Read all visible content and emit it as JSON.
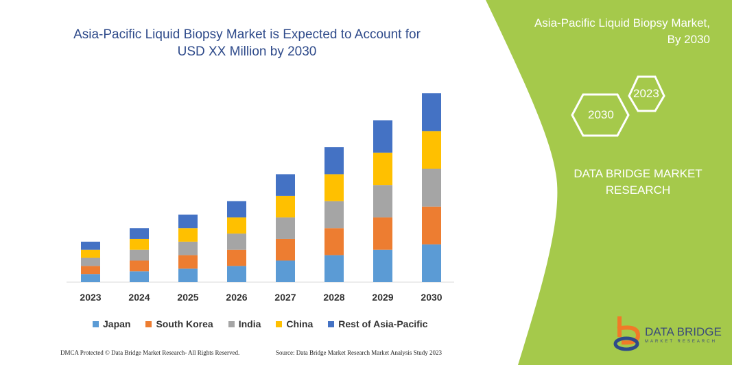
{
  "title": "Asia-Pacific Liquid Biopsy Market is Expected to Account for USD XX Million by 2030",
  "side_panel": {
    "heading_line1": "Asia-Pacific Liquid Biopsy Market,",
    "heading_line2": "By 2030",
    "hex_start": "2023",
    "hex_end": "2030",
    "company_line1": "DATA BRIDGE MARKET",
    "company_line2": "RESEARCH",
    "logo_text": "DATA BRIDGE",
    "logo_subtext": "MARKET RESEARCH",
    "panel_color": "#a5c94b"
  },
  "footer": {
    "left": "DMCA Protected © Data Bridge Market Research- All Rights Reserved.",
    "right": "Source: Data Bridge Market Research Market Analysis Study 2023"
  },
  "chart_data": {
    "type": "bar",
    "stacked": true,
    "categories": [
      "2023",
      "2024",
      "2025",
      "2026",
      "2027",
      "2028",
      "2029",
      "2030"
    ],
    "series": [
      {
        "name": "Japan",
        "color": "#5b9bd5",
        "values": [
          12,
          16,
          20,
          24,
          32,
          40,
          48,
          56
        ]
      },
      {
        "name": "South Korea",
        "color": "#ed7d31",
        "values": [
          12,
          16,
          20,
          24,
          32,
          40,
          48,
          56
        ]
      },
      {
        "name": "India",
        "color": "#a5a5a5",
        "values": [
          12,
          16,
          20,
          24,
          32,
          40,
          48,
          56
        ]
      },
      {
        "name": "China",
        "color": "#ffc000",
        "values": [
          12,
          16,
          20,
          24,
          32,
          40,
          48,
          56
        ]
      },
      {
        "name": "Rest of Asia-Pacific",
        "color": "#4472c4",
        "values": [
          12,
          16,
          20,
          24,
          32,
          40,
          48,
          56
        ]
      }
    ],
    "legend_position": "bottom",
    "grid": false,
    "y_axis_shown": false
  }
}
